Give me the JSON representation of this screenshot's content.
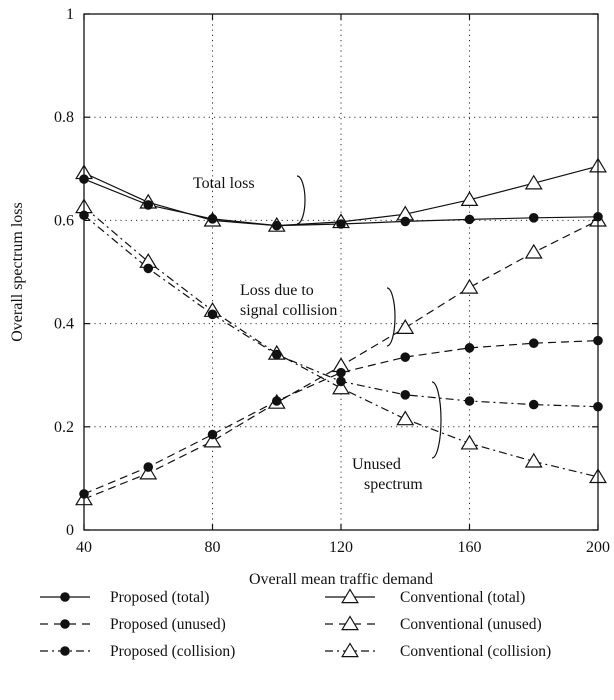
{
  "chart_data": {
    "type": "line",
    "title": "",
    "xlabel": "Overall mean traffic demand",
    "ylabel": "Overall spectrum loss",
    "xlim": [
      40,
      200
    ],
    "ylim": [
      0,
      1
    ],
    "xticks": [
      40,
      80,
      120,
      160,
      200
    ],
    "yticks": [
      0,
      0.2,
      0.4,
      0.6,
      0.8,
      1
    ],
    "ytick_labels": [
      "0",
      "0.2",
      "0.4",
      "0.6",
      "0.8",
      "1"
    ],
    "grid": "dotted",
    "legend_position": "bottom, two columns, outside plot",
    "x": [
      40,
      60,
      80,
      100,
      120,
      140,
      160,
      180,
      200
    ],
    "series": [
      {
        "name": "Proposed (total)",
        "line": "solid",
        "marker": "filled-circle",
        "values": [
          0.68,
          0.63,
          0.603,
          0.59,
          0.593,
          0.598,
          0.602,
          0.605,
          0.607
        ]
      },
      {
        "name": "Proposed (unused)",
        "line": "dashed",
        "marker": "filled-circle",
        "values": [
          0.07,
          0.122,
          0.185,
          0.25,
          0.305,
          0.335,
          0.353,
          0.362,
          0.367
        ]
      },
      {
        "name": "Proposed (collision)",
        "line": "dashdot",
        "marker": "filled-circle",
        "values": [
          0.61,
          0.507,
          0.418,
          0.34,
          0.288,
          0.262,
          0.25,
          0.243,
          0.239
        ]
      },
      {
        "name": "Conventional (total)",
        "line": "solid",
        "marker": "open-triangle",
        "values": [
          0.692,
          0.635,
          0.6,
          0.59,
          0.597,
          0.612,
          0.64,
          0.672,
          0.705
        ]
      },
      {
        "name": "Conventional (unused)",
        "line": "dashed",
        "marker": "open-triangle",
        "values": [
          0.06,
          0.11,
          0.172,
          0.247,
          0.318,
          0.392,
          0.47,
          0.538,
          0.6
        ]
      },
      {
        "name": "Conventional (collision)",
        "line": "dashdot",
        "marker": "open-triangle",
        "values": [
          0.626,
          0.52,
          0.425,
          0.342,
          0.275,
          0.215,
          0.168,
          0.133,
          0.103
        ]
      }
    ],
    "annotations": [
      {
        "text": "Total loss",
        "lines": [
          "Total loss"
        ]
      },
      {
        "text": "Loss due to signal collision",
        "lines": [
          "Loss due to",
          "signal collision"
        ]
      },
      {
        "text": "Unused spectrum",
        "lines": [
          "Unused",
          "spectrum"
        ]
      }
    ],
    "tick_label_offset_note": ""
  }
}
